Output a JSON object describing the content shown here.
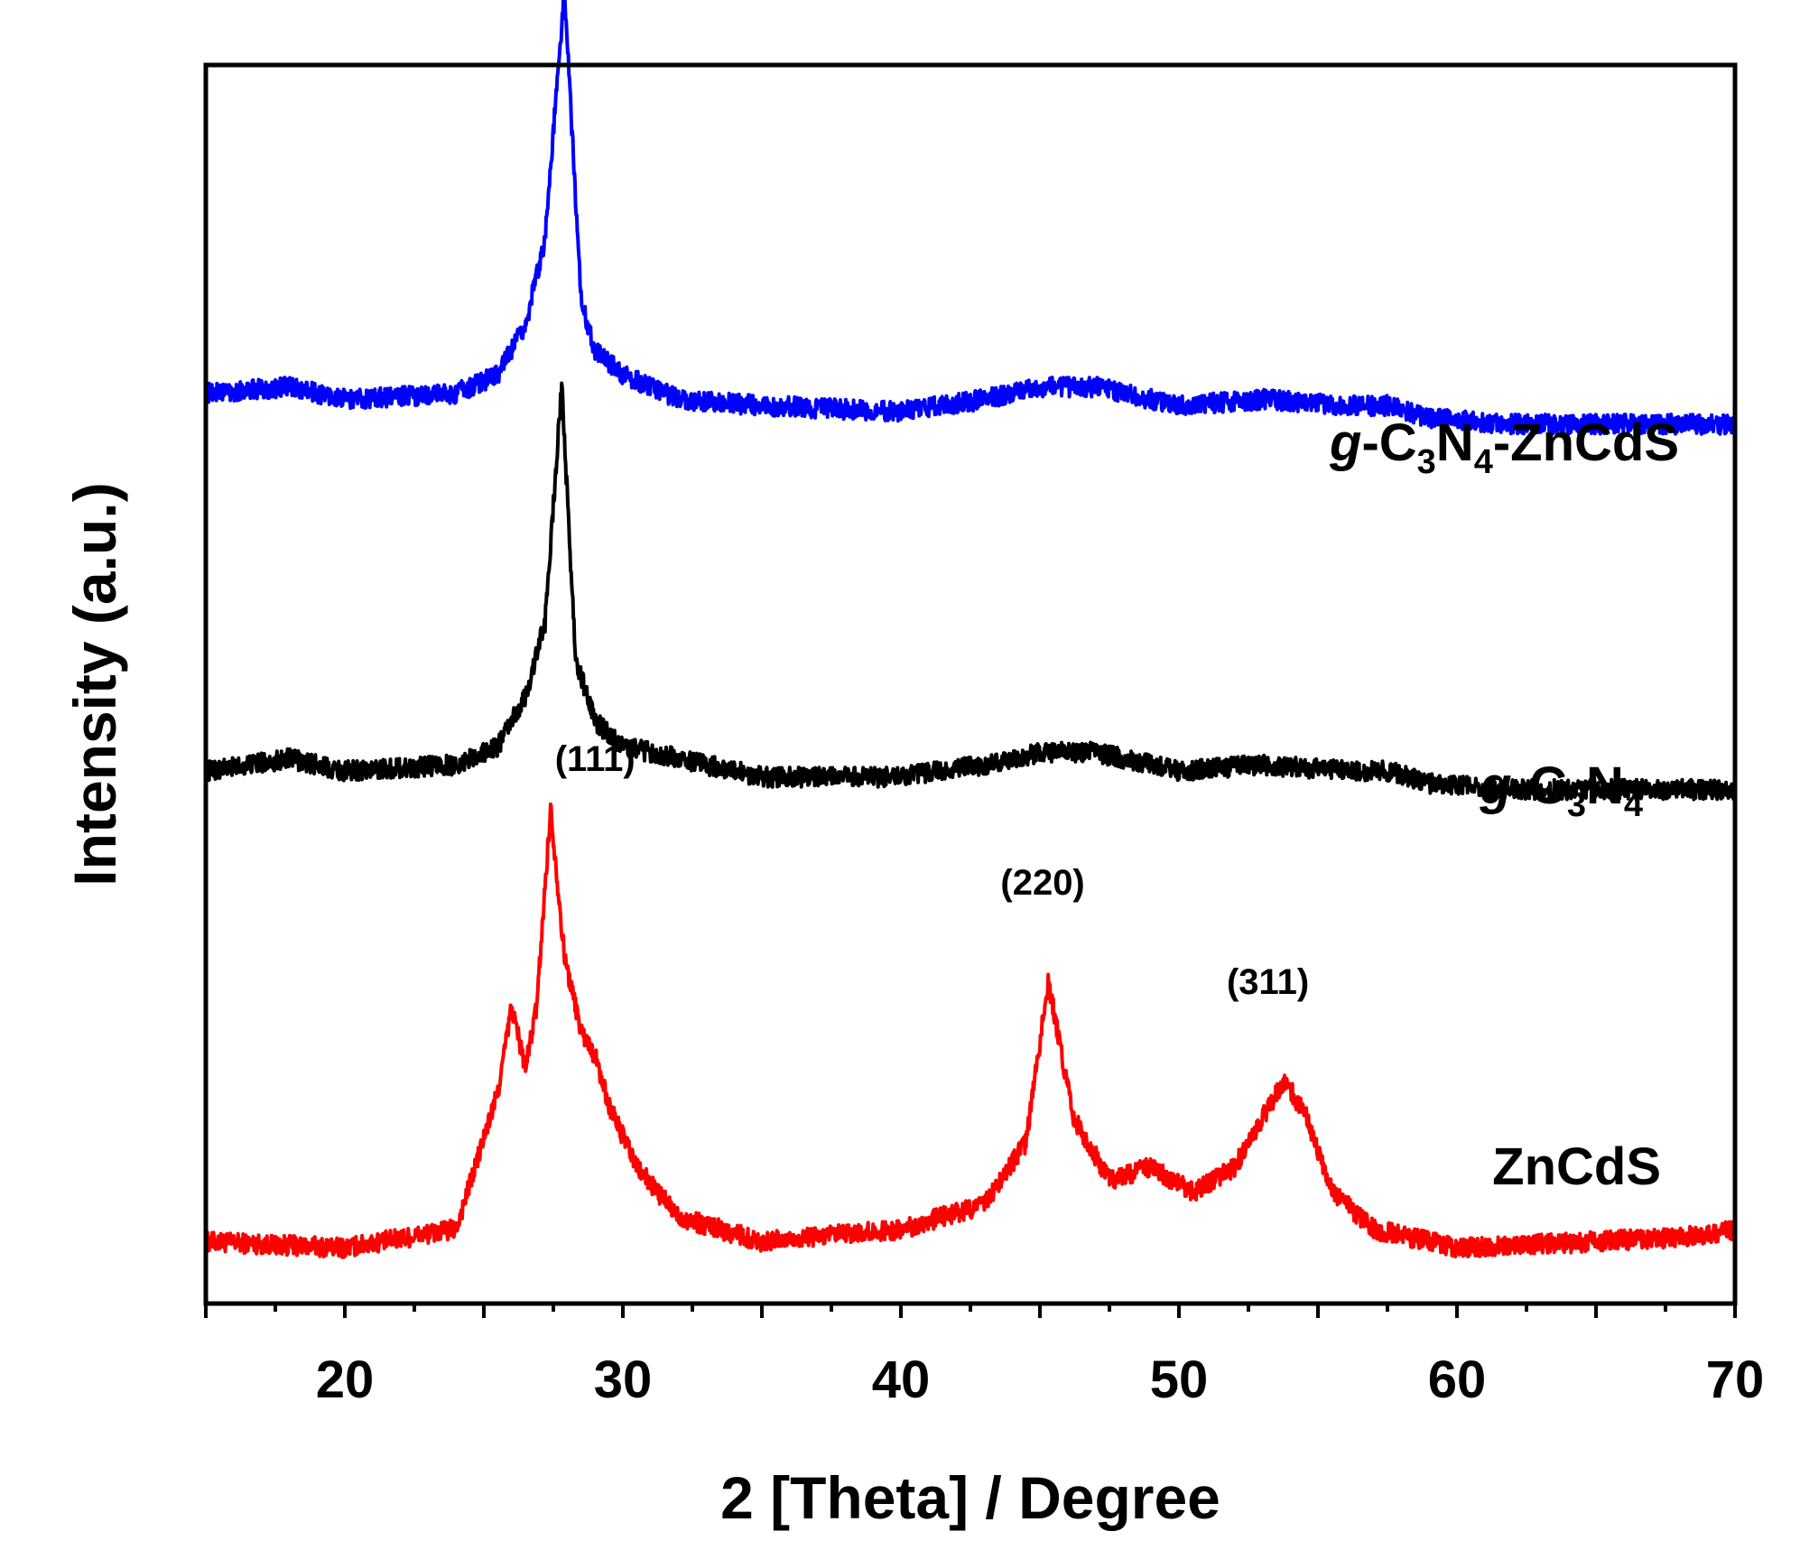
{
  "chart_data": {
    "type": "line",
    "xlabel": "2 [Theta] / Degree",
    "ylabel": "Intensity (a.u.)",
    "xlim": [
      15,
      70
    ],
    "ylim": [
      0,
      1
    ],
    "x_ticks": [
      "20",
      "30",
      "40",
      "50",
      "60",
      "70"
    ],
    "y_ticks": [],
    "grid": false,
    "legend": "none",
    "series": [
      {
        "name": "ZnCdS",
        "name_parts": [
          "ZnCdS"
        ],
        "color": "#ff0000",
        "x": [
          15,
          20,
          24,
          25.5,
          26,
          26.5,
          26.9,
          27.4,
          27.9,
          28.5,
          29,
          29.5,
          30.5,
          32,
          35,
          40,
          43,
          44.5,
          45.3,
          46.2,
          47.5,
          49,
          50.5,
          52,
          53,
          53.8,
          54.6,
          55.5,
          57,
          60,
          65,
          69,
          70
        ],
        "values": [
          0.05,
          0.045,
          0.06,
          0.17,
          0.24,
          0.19,
          0.24,
          0.4,
          0.28,
          0.22,
          0.2,
          0.16,
          0.11,
          0.07,
          0.05,
          0.06,
          0.08,
          0.13,
          0.26,
          0.15,
          0.1,
          0.11,
          0.09,
          0.11,
          0.15,
          0.18,
          0.15,
          0.09,
          0.06,
          0.045,
          0.05,
          0.055,
          0.06
        ]
      },
      {
        "name": "g-C3N4",
        "name_parts": [
          "g",
          "-C",
          "3",
          "N",
          "4"
        ],
        "color": "#000000",
        "x": [
          15,
          18,
          20,
          24,
          25.5,
          26.5,
          27.2,
          27.8,
          28.3,
          29,
          30,
          32,
          35,
          40,
          43,
          45,
          47,
          50,
          53,
          56,
          57.5,
          59,
          62,
          70
        ],
        "values": [
          0.43,
          0.44,
          0.43,
          0.435,
          0.45,
          0.49,
          0.55,
          0.74,
          0.52,
          0.47,
          0.45,
          0.44,
          0.425,
          0.425,
          0.435,
          0.445,
          0.445,
          0.43,
          0.435,
          0.43,
          0.43,
          0.42,
          0.415,
          0.415
        ]
      },
      {
        "name": "g-C3N4-ZnCdS",
        "name_parts": [
          "g",
          "-C",
          "3",
          "N",
          "4",
          "-ZnCdS"
        ],
        "color": "#0000ff",
        "x": [
          15,
          18,
          20,
          24,
          25.5,
          26.5,
          27.2,
          27.9,
          28.5,
          29,
          30,
          32,
          35,
          40,
          43,
          45,
          47,
          50,
          53,
          56,
          57.5,
          59,
          62,
          70
        ],
        "values": [
          0.735,
          0.74,
          0.73,
          0.735,
          0.75,
          0.79,
          0.86,
          1.06,
          0.81,
          0.77,
          0.75,
          0.73,
          0.725,
          0.72,
          0.73,
          0.74,
          0.74,
          0.725,
          0.73,
          0.725,
          0.725,
          0.715,
          0.71,
          0.71
        ]
      }
    ],
    "annotations": [
      {
        "text": "(111)",
        "x": 29.0,
        "y": 0.43
      },
      {
        "text": "(220)",
        "x": 45.1,
        "y": 0.33
      },
      {
        "text": "(311)",
        "x": 53.2,
        "y": 0.25
      }
    ]
  }
}
